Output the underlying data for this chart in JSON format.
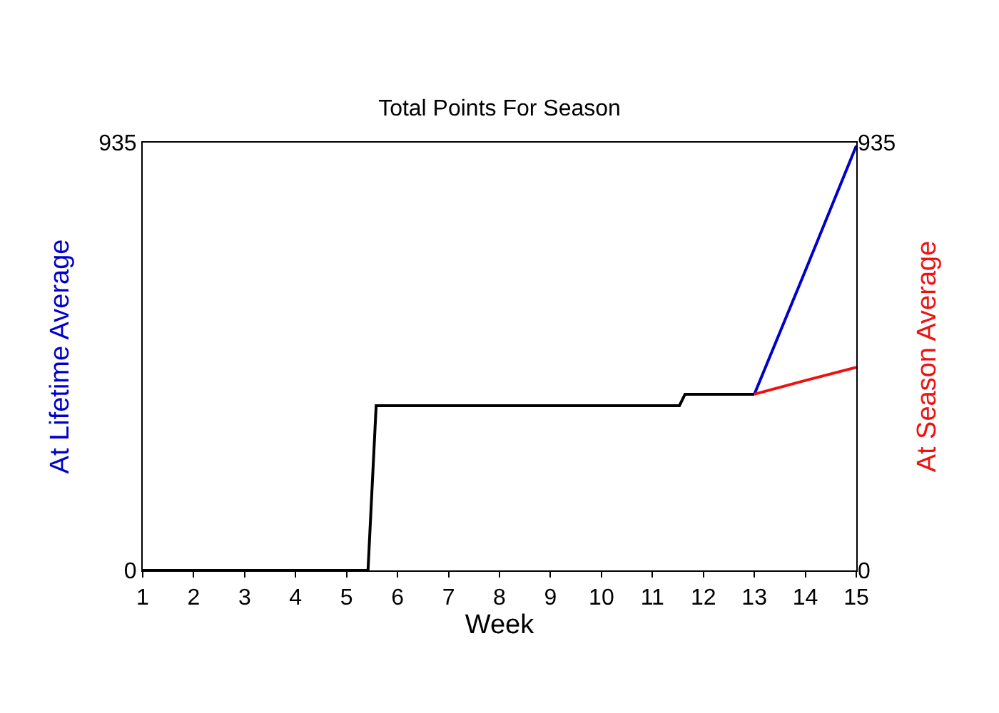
{
  "chart_data": {
    "type": "line",
    "title": "Total Points For Season",
    "xlabel": "Week",
    "ylabel": "At Lifetime Average",
    "y2label": "At Season Average",
    "xlim": [
      1,
      15
    ],
    "xticks": [
      1,
      2,
      3,
      4,
      5,
      6,
      7,
      8,
      9,
      10,
      11,
      12,
      13,
      14,
      15
    ],
    "ylim": [
      0,
      935
    ],
    "yticks": [
      0,
      935
    ],
    "y2lim": [
      0,
      935
    ],
    "y2ticks": [
      0,
      935
    ],
    "legend": false,
    "series": [
      {
        "color": "#0000cc",
        "x": [
          13,
          14,
          15
        ],
        "values": [
          385,
          655,
          928
        ]
      },
      {
        "color": "#ee1111",
        "axis": "y2",
        "x": [
          13,
          14,
          15
        ],
        "values": [
          385,
          415,
          444
        ]
      },
      {
        "color": "#000000",
        "x": [
          1,
          5.42,
          5.58,
          11.53,
          11.64,
          13
        ],
        "values": [
          0,
          0,
          360,
          360,
          385,
          385
        ]
      }
    ]
  }
}
